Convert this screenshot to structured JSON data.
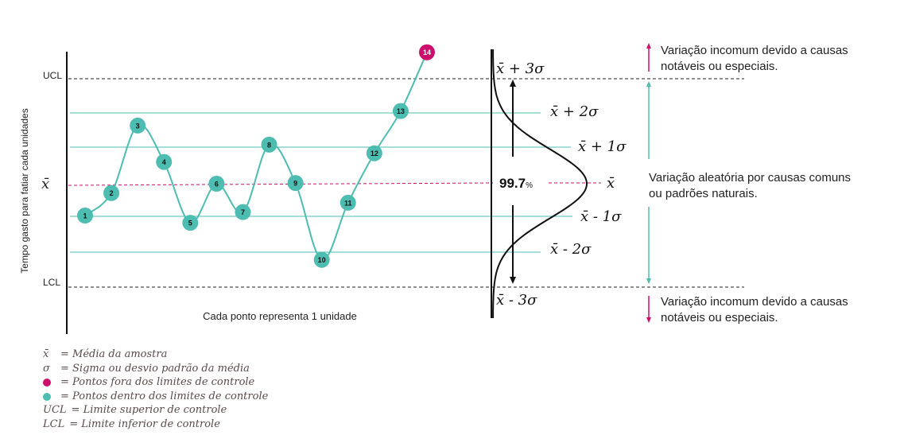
{
  "chart_data": {
    "type": "control-chart",
    "ylabel": "Tempo gasto para fatiar cada unidades",
    "xlabel": "Cada ponto representa 1 unidade",
    "ucl_label": "UCL",
    "lcl_label": "LCL",
    "mean_label": "x̄",
    "sigma_levels": [
      3,
      2,
      1,
      0,
      -1,
      -2,
      -3
    ],
    "points": [
      {
        "n": 1,
        "sigma": -0.92,
        "out": false
      },
      {
        "n": 2,
        "sigma": -0.27,
        "out": false
      },
      {
        "n": 3,
        "sigma": 1.68,
        "out": false
      },
      {
        "n": 4,
        "sigma": 0.63,
        "out": false
      },
      {
        "n": 5,
        "sigma": -1.13,
        "out": false
      },
      {
        "n": 6,
        "sigma": 0.0,
        "out": false
      },
      {
        "n": 7,
        "sigma": -0.82,
        "out": false
      },
      {
        "n": 8,
        "sigma": 1.13,
        "out": false
      },
      {
        "n": 9,
        "sigma": 0.02,
        "out": false
      },
      {
        "n": 10,
        "sigma": -2.2,
        "out": false
      },
      {
        "n": 11,
        "sigma": -0.55,
        "out": false
      },
      {
        "n": 12,
        "sigma": 0.88,
        "out": false
      },
      {
        "n": 13,
        "sigma": 2.1,
        "out": false
      },
      {
        "n": 14,
        "sigma": 3.8,
        "out": true
      }
    ],
    "colors": {
      "in_control": "#4dbdb1",
      "out_of_control": "#cc0e6d",
      "mean_line": "#cc0e6d",
      "sigma_lines": "#4dbdb1",
      "control_limits": "#222222"
    }
  },
  "distribution": {
    "labels": {
      "p3": "x̄ + 3σ",
      "p2": "x̄ + 2σ",
      "p1": "x̄ + 1σ",
      "mean": "x̄",
      "m1": "x̄ - 1σ",
      "m2": "x̄ - 2σ",
      "m3": "x̄ - 3σ"
    },
    "percent_value": "99.7",
    "percent_unit": "%"
  },
  "annotations": {
    "top": "Variação incomum devido a causas notáveis ou especiais.",
    "middle": "Variação aleatória por causas comuns ou padrões naturais.",
    "bottom": "Variação incomum devido a causas notáveis ou especiais."
  },
  "legend": [
    {
      "symbol": "x̄",
      "text": "= Média da amostra",
      "icon": "x-bar-symbol"
    },
    {
      "symbol": "σ",
      "text": "= Sigma ou desvio padrão da média",
      "icon": "sigma-symbol"
    },
    {
      "symbol": "",
      "text": "= Pontos fora dos limites de controle",
      "icon": "magenta-dot-icon",
      "color": "#cc0e6d"
    },
    {
      "symbol": "",
      "text": "= Pontos dentro dos limites de controle",
      "icon": "teal-dot-icon",
      "color": "#4dbdb1"
    },
    {
      "symbol": "UCL",
      "text": "= Limite superior de controle",
      "icon": ""
    },
    {
      "symbol": "LCL",
      "text": "= Limite inferior de controle",
      "icon": ""
    }
  ]
}
